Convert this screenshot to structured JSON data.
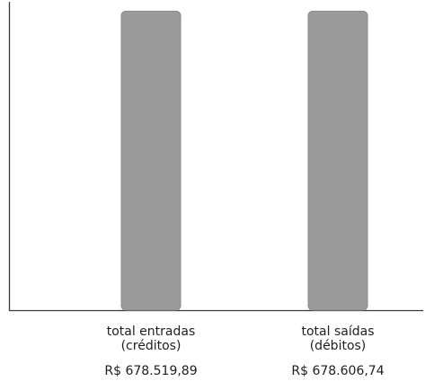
{
  "chart_data": {
    "type": "bar",
    "categories": [
      [
        "total entradas",
        "(créditos)"
      ],
      [
        "total saídas",
        "(débitos)"
      ]
    ],
    "values": [
      678519.89,
      678606.74
    ],
    "value_labels": [
      "R$ 678.519,89",
      "R$ 678.606,74"
    ],
    "title": "",
    "xlabel": "",
    "ylabel": "",
    "ylim": [
      0,
      700000
    ],
    "grid": false,
    "legend": "none",
    "colors": {
      "bar_fill": "#9b9b9b",
      "bar_stroke": "#8a8a8a",
      "axis": "#3a3a3a",
      "text": "#1e1e1e"
    }
  }
}
